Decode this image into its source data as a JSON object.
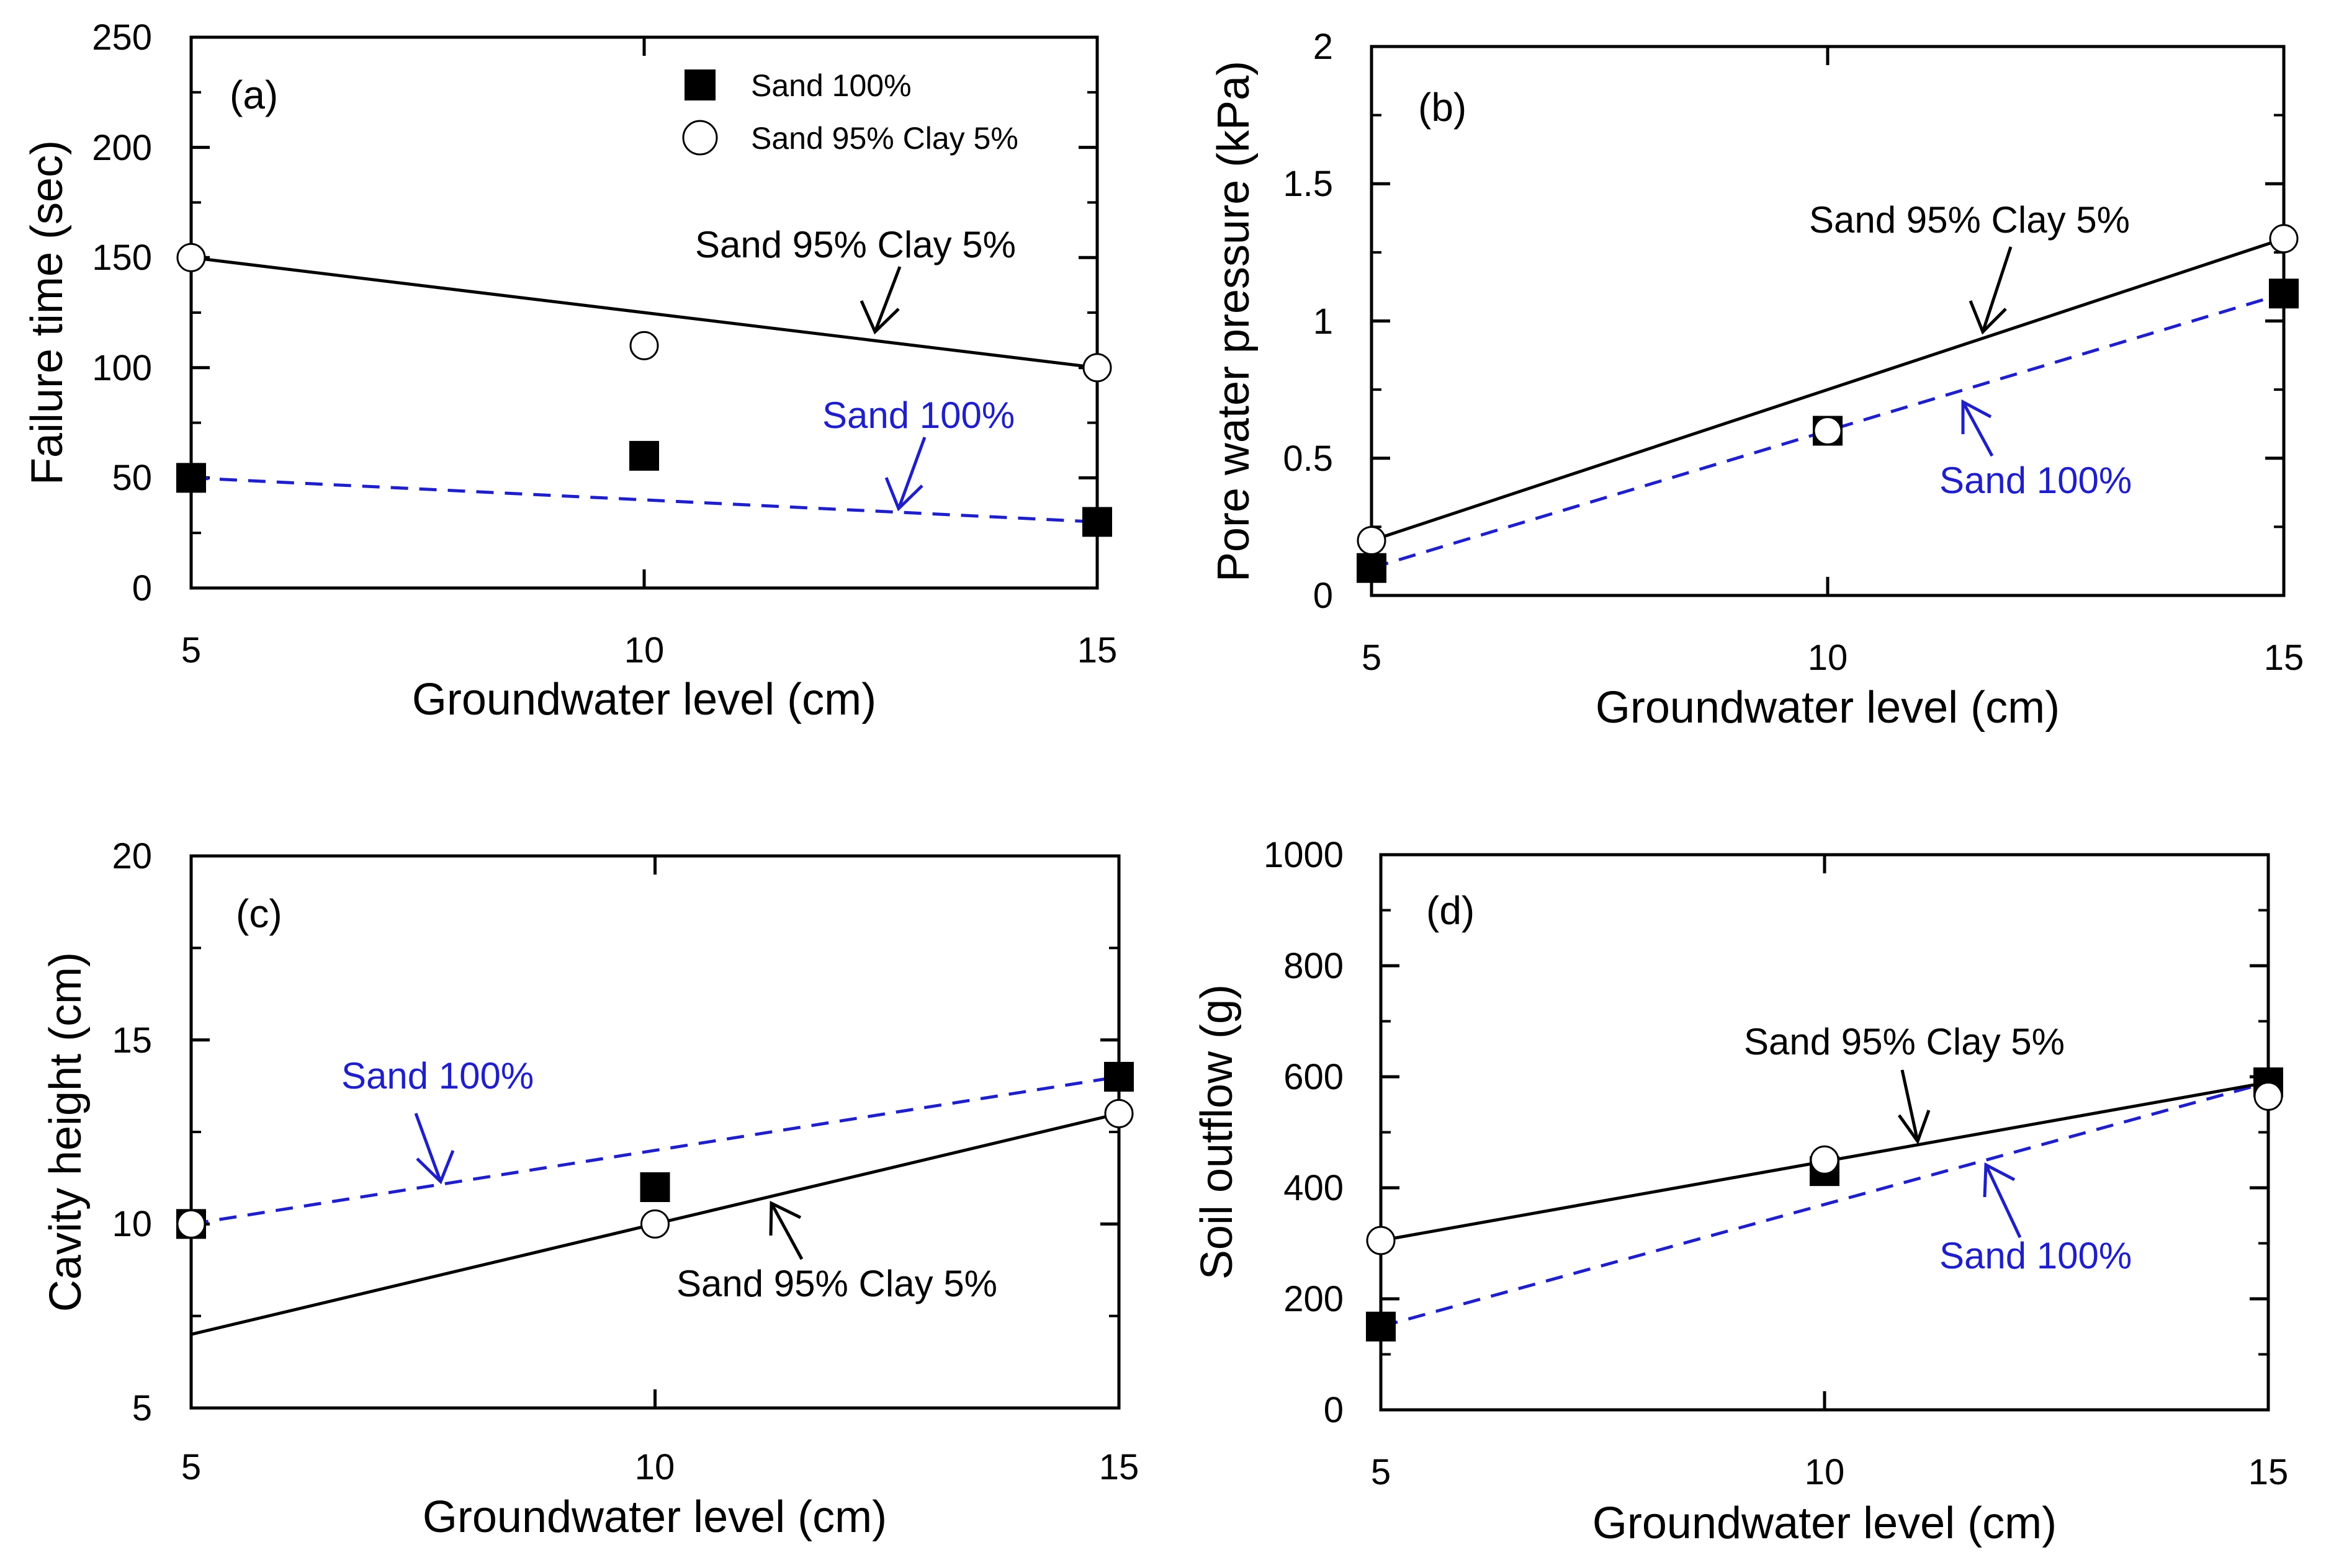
{
  "figure": {
    "legend": {
      "entries": [
        {
          "name": "Sand 100%",
          "marker": "filled-square"
        },
        {
          "name": "Sand 95% Clay 5%",
          "marker": "open-circle"
        }
      ]
    }
  },
  "colors": {
    "sand100": "#1f1fc8",
    "sand95": "#000000"
  },
  "chart_data": [
    {
      "type": "scatter",
      "panel": "(a)",
      "xlabel": "Groundwater level (cm)",
      "ylabel": "Failure time (sec)",
      "xlim": [
        5,
        15
      ],
      "ylim": [
        0,
        250
      ],
      "xticks": [
        5,
        10,
        15
      ],
      "yticks": [
        0,
        50,
        100,
        150,
        200,
        250
      ],
      "x": [
        5,
        10,
        15
      ],
      "series": [
        {
          "name": "Sand 100%",
          "marker": "filled-square",
          "values": [
            50,
            60,
            30
          ],
          "fit": {
            "style": "dashed",
            "color": "#1f1fc8",
            "from": [
              5,
              50
            ],
            "to": [
              15,
              30
            ]
          }
        },
        {
          "name": "Sand 95% Clay 5%",
          "marker": "open-circle",
          "values": [
            150,
            110,
            100
          ],
          "fit": {
            "style": "solid",
            "color": "#000000",
            "from": [
              5,
              150
            ],
            "to": [
              15,
              100
            ]
          }
        }
      ],
      "annotations": [
        {
          "text": "Sand 95% Clay 5%",
          "series": "Sand 95% Clay 5%"
        },
        {
          "text": "Sand 100%",
          "series": "Sand 100%"
        }
      ]
    },
    {
      "type": "scatter",
      "panel": "(b)",
      "xlabel": "Groundwater level (cm)",
      "ylabel": "Pore water pressure (kPa)",
      "xlim": [
        5,
        15
      ],
      "ylim": [
        0,
        2
      ],
      "xticks": [
        5,
        10,
        15
      ],
      "yticks": [
        0,
        0.5,
        1,
        1.5,
        2
      ],
      "x": [
        5,
        10,
        15
      ],
      "series": [
        {
          "name": "Sand 100%",
          "marker": "filled-square",
          "values": [
            0.1,
            0.6,
            1.1
          ],
          "fit": {
            "style": "dashed",
            "color": "#1f1fc8",
            "from": [
              5,
              0.1
            ],
            "to": [
              15,
              1.1
            ]
          }
        },
        {
          "name": "Sand 95% Clay 5%",
          "marker": "open-circle",
          "values": [
            0.2,
            0.6,
            1.3
          ],
          "fit": {
            "style": "solid",
            "color": "#000000",
            "from": [
              5,
              0.2
            ],
            "to": [
              15,
              1.3
            ]
          }
        }
      ],
      "annotations": [
        {
          "text": "Sand 95% Clay 5%",
          "series": "Sand 95% Clay 5%"
        },
        {
          "text": "Sand 100%",
          "series": "Sand 100%"
        }
      ]
    },
    {
      "type": "scatter",
      "panel": "(c)",
      "xlabel": "Groundwater level (cm)",
      "ylabel": "Cavity height (cm)",
      "xlim": [
        5,
        15
      ],
      "ylim": [
        5,
        20
      ],
      "xticks": [
        5,
        10,
        15
      ],
      "yticks": [
        5,
        10,
        15,
        20
      ],
      "x": [
        5,
        10,
        15
      ],
      "series": [
        {
          "name": "Sand 100%",
          "marker": "filled-square",
          "values": [
            10,
            11,
            14
          ],
          "fit": {
            "style": "dashed",
            "color": "#1f1fc8",
            "from": [
              5,
              10
            ],
            "to": [
              15,
              14
            ]
          }
        },
        {
          "name": "Sand 95% Clay 5%",
          "marker": "open-circle",
          "values": [
            10,
            10,
            13
          ],
          "fit": {
            "style": "solid",
            "color": "#000000",
            "from": [
              5,
              7
            ],
            "to": [
              15,
              13
            ]
          }
        }
      ],
      "annotations": [
        {
          "text": "Sand 100%",
          "series": "Sand 100%"
        },
        {
          "text": "Sand 95% Clay 5%",
          "series": "Sand 95% Clay 5%"
        }
      ]
    },
    {
      "type": "scatter",
      "panel": "(d)",
      "xlabel": "Groundwater level (cm)",
      "ylabel": "Soil outflow (g)",
      "xlim": [
        5,
        15
      ],
      "ylim": [
        0,
        1000
      ],
      "xticks": [
        5,
        10,
        15
      ],
      "yticks": [
        0,
        200,
        400,
        600,
        800,
        1000
      ],
      "x": [
        5,
        10,
        15
      ],
      "series": [
        {
          "name": "Sand 100%",
          "marker": "filled-square",
          "values": [
            150,
            430,
            590
          ],
          "fit": {
            "style": "dashed",
            "color": "#1f1fc8",
            "from": [
              5,
              150
            ],
            "to": [
              15,
              590
            ]
          }
        },
        {
          "name": "Sand 95% Clay 5%",
          "marker": "open-circle",
          "values": [
            305,
            450,
            565
          ],
          "fit": {
            "style": "solid",
            "color": "#000000",
            "from": [
              5,
              305
            ],
            "to": [
              15,
              590
            ]
          }
        }
      ],
      "annotations": [
        {
          "text": "Sand 95% Clay 5%",
          "series": "Sand 95% Clay 5%"
        },
        {
          "text": "Sand 100%",
          "series": "Sand 100%"
        }
      ]
    }
  ]
}
